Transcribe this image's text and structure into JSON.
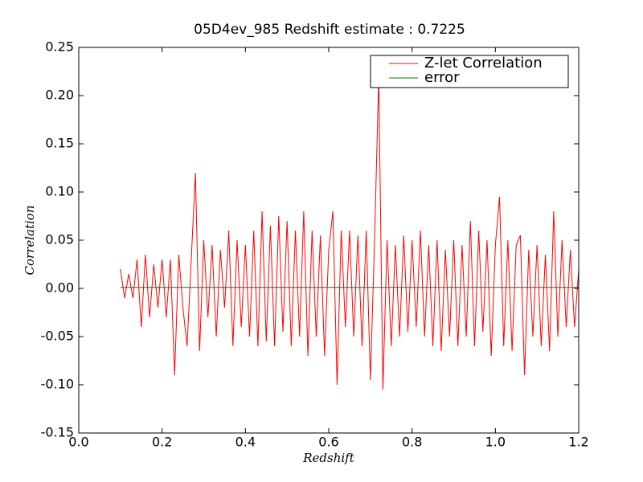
{
  "chart_data": {
    "type": "line",
    "title": "05D4ev_985 Redshift estimate : 0.7225",
    "x_label": "Redshift",
    "y_label": "Correlation",
    "xlim": [
      0,
      1.2
    ],
    "ylim": [
      -0.15,
      0.25
    ],
    "xticks": [
      {
        "value": 0,
        "label": "0.0"
      },
      {
        "value": 0.2,
        "label": "0.2"
      },
      {
        "value": 0.4,
        "label": "0.4"
      },
      {
        "value": 0.6,
        "label": "0.6"
      },
      {
        "value": 0.8,
        "label": "0.8"
      },
      {
        "value": 1,
        "label": "1.0"
      },
      {
        "value": 1.2,
        "label": "1.2"
      }
    ],
    "yticks": [
      -0.15,
      {
        "value": -0.1,
        "label": "-0.10"
      },
      -0.05,
      {
        "value": 0,
        "label": "0.00"
      },
      0.05,
      {
        "value": 0.1,
        "label": "0.10"
      },
      0.15,
      {
        "value": 0.2,
        "label": "0.20"
      },
      0.25
    ],
    "legend": "upper right",
    "grid": false,
    "series": [
      {
        "name": "Z-let Correlation",
        "color": "#ff0000",
        "x": [
          0.1,
          0.11,
          0.12,
          0.13,
          0.14,
          0.15,
          0.16,
          0.17,
          0.18,
          0.19,
          0.2,
          0.21,
          0.22,
          0.23,
          0.24,
          0.25,
          0.26,
          0.27,
          0.28,
          0.29,
          0.3,
          0.31,
          0.32,
          0.33,
          0.34,
          0.35,
          0.36,
          0.37,
          0.38,
          0.39,
          0.4,
          0.41,
          0.42,
          0.43,
          0.44,
          0.45,
          0.46,
          0.47,
          0.48,
          0.49,
          0.5,
          0.51,
          0.52,
          0.53,
          0.54,
          0.55,
          0.56,
          0.57,
          0.58,
          0.59,
          0.6,
          0.61,
          0.62,
          0.63,
          0.64,
          0.65,
          0.66,
          0.67,
          0.68,
          0.69,
          0.7,
          0.71,
          0.72,
          0.73,
          0.74,
          0.75,
          0.76,
          0.77,
          0.78,
          0.79,
          0.8,
          0.81,
          0.82,
          0.83,
          0.84,
          0.85,
          0.86,
          0.87,
          0.88,
          0.89,
          0.9,
          0.91,
          0.92,
          0.93,
          0.94,
          0.95,
          0.96,
          0.97,
          0.98,
          0.99,
          1.0,
          1.01,
          1.02,
          1.03,
          1.04,
          1.05,
          1.06,
          1.07,
          1.08,
          1.09,
          1.1,
          1.11,
          1.12,
          1.13,
          1.14,
          1.15,
          1.16,
          1.17,
          1.18,
          1.19,
          1.2
        ],
        "values": [
          0.02,
          -0.01,
          0.015,
          -0.01,
          0.03,
          -0.04,
          0.035,
          -0.03,
          0.025,
          -0.02,
          0.03,
          -0.03,
          0.03,
          -0.09,
          0.035,
          -0.02,
          -0.06,
          0.03,
          0.12,
          -0.065,
          0.05,
          -0.03,
          0.045,
          -0.05,
          0.04,
          -0.02,
          0.06,
          -0.06,
          0.05,
          -0.04,
          0.045,
          -0.05,
          0.06,
          -0.06,
          0.08,
          -0.055,
          0.065,
          -0.06,
          0.075,
          -0.045,
          0.07,
          -0.06,
          0.06,
          -0.05,
          0.08,
          -0.07,
          0.06,
          -0.05,
          0.055,
          -0.07,
          0.04,
          0.08,
          -0.1,
          0.06,
          -0.04,
          0.06,
          -0.05,
          0.055,
          -0.06,
          0.06,
          -0.095,
          0.05,
          0.22,
          -0.105,
          0.05,
          -0.06,
          0.045,
          -0.05,
          0.055,
          -0.045,
          0.05,
          -0.04,
          0.06,
          -0.05,
          0.045,
          -0.06,
          0.05,
          -0.065,
          0.04,
          -0.05,
          0.05,
          -0.06,
          0.045,
          -0.05,
          0.07,
          -0.06,
          0.06,
          -0.045,
          0.05,
          -0.07,
          0.045,
          0.095,
          -0.06,
          0.05,
          -0.065,
          0.045,
          0.055,
          -0.09,
          0.04,
          -0.05,
          0.045,
          -0.06,
          0.035,
          -0.065,
          0.08,
          -0.05,
          0.05,
          -0.04,
          0.04,
          -0.04,
          0.02
        ]
      },
      {
        "name": "error",
        "color": "#008000",
        "x": [
          0.1,
          1.2
        ],
        "values": [
          0.001,
          0.001
        ]
      }
    ],
    "estimate_marker": {
      "x": 0.7225,
      "y": 0.225
    }
  }
}
